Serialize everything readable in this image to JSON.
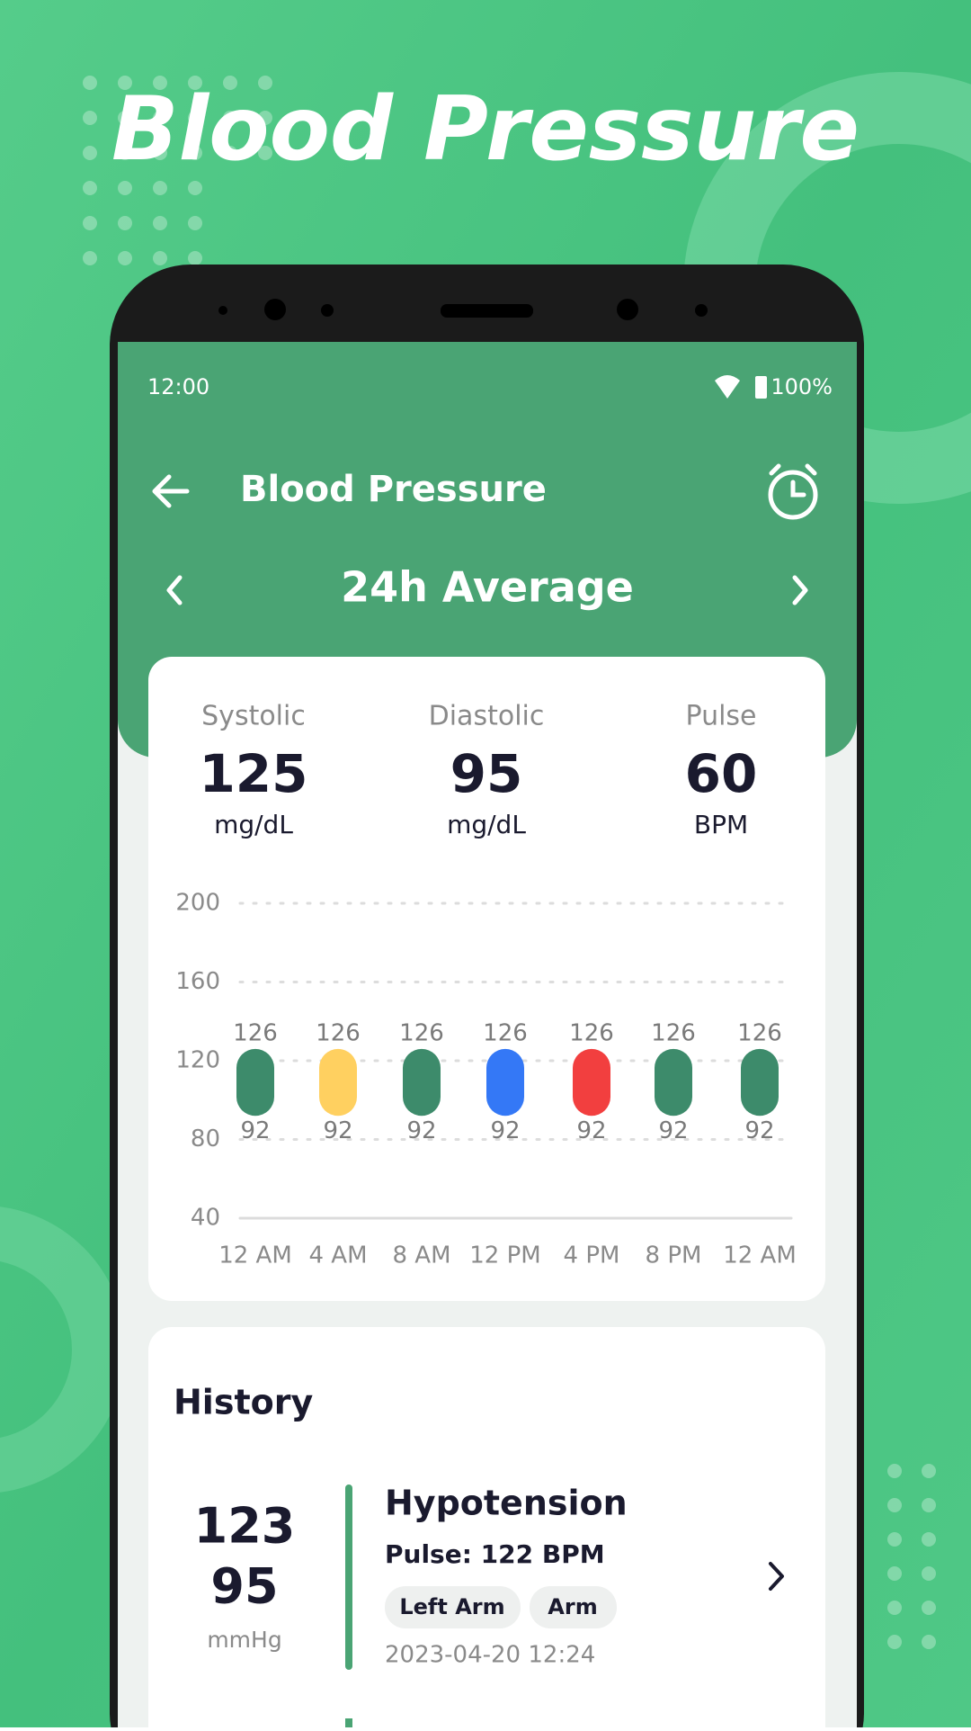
{
  "header": {
    "title": "Blood Pressure"
  },
  "status_bar": {
    "time": "12:00",
    "battery": "100%"
  },
  "app_bar": {
    "title": "Blood Pressure"
  },
  "period": "24h Average",
  "stats": [
    {
      "label": "Systolic",
      "value": "125",
      "unit": "mg/dL"
    },
    {
      "label": "Diastolic",
      "value": "95",
      "unit": "mg/dL"
    },
    {
      "label": "Pulse",
      "value": "60",
      "unit": "BPM"
    }
  ],
  "chart": {
    "type": "range-bar",
    "categories": [
      "12 AM",
      "4 AM",
      "8 AM",
      "12 PM",
      "4 PM",
      "8 PM",
      "12 AM"
    ],
    "low": [
      92,
      92,
      92,
      92,
      92,
      92,
      92
    ],
    "high": [
      126,
      126,
      126,
      126,
      126,
      126,
      126
    ],
    "colors": [
      "#3d8b6b",
      "#ffd060",
      "#3d8b6b",
      "#3478f6",
      "#f23f3f",
      "#3d8b6b",
      "#3d8b6b"
    ],
    "ylim": [
      40,
      200
    ],
    "yticks": [
      40,
      80,
      120,
      160,
      200
    ],
    "grid": true
  },
  "history": {
    "title": "History",
    "entries": [
      {
        "systolic": "123",
        "diastolic": "95",
        "unit": "mmHg",
        "status": "Hypotension",
        "pulse": "Pulse: 122 BPM",
        "tags": [
          "Left Arm",
          "Arm"
        ],
        "date": "2023-04-20 12:24"
      }
    ]
  }
}
